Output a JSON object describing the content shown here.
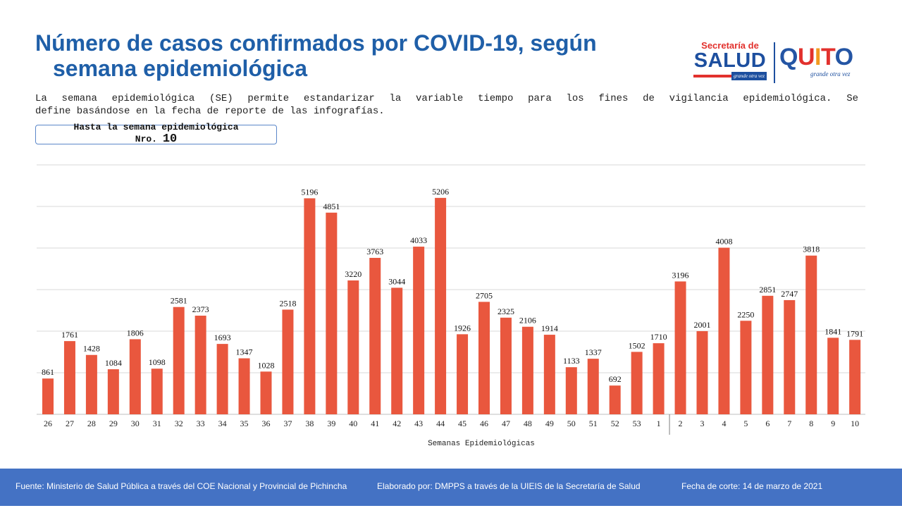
{
  "header": {
    "title_line1": "Número de casos confirmados por COVID-19, según",
    "title_line2": "semana epidemiológica",
    "logo_salud": {
      "top": "Secretaría de",
      "main": "SALUD",
      "tagline": "grande otra vez"
    },
    "logo_quito": {
      "word": "QUITO",
      "tagline": "grande otra vez",
      "letter_colors": [
        "#2455a4",
        "#e2312d",
        "#f29a1f",
        "#e2312d",
        "#2455a4"
      ]
    }
  },
  "description": {
    "line1": "La semana epidemiológica (SE) permite estandarizar la variable tiempo para los fines de vigilancia epidemiológica. Se",
    "line2": "define basándose en la fecha de reporte de las infografías."
  },
  "week_box": {
    "line1": "Hasta la semana epidemiológica",
    "nro_label": "Nro.",
    "nro_value": "10"
  },
  "chart_data": {
    "type": "bar",
    "categories": [
      "26",
      "27",
      "28",
      "29",
      "30",
      "31",
      "32",
      "33",
      "34",
      "35",
      "36",
      "37",
      "38",
      "39",
      "40",
      "41",
      "42",
      "43",
      "44",
      "45",
      "46",
      "47",
      "48",
      "49",
      "50",
      "51",
      "52",
      "53",
      "1",
      "2",
      "3",
      "4",
      "5",
      "6",
      "7",
      "8",
      "9",
      "10"
    ],
    "values": [
      861,
      1761,
      1428,
      1084,
      1806,
      1098,
      2581,
      2373,
      1693,
      1347,
      1028,
      2518,
      5196,
      4851,
      3220,
      3763,
      3044,
      4033,
      5206,
      1926,
      2705,
      2325,
      2106,
      1914,
      1133,
      1337,
      692,
      1502,
      1710,
      3196,
      2001,
      4008,
      2250,
      2851,
      2747,
      3818,
      1841,
      1791
    ],
    "xlabel": "Semanas Epidemiológicas",
    "ylabel": "",
    "ylim": [
      0,
      6000
    ],
    "grid": true,
    "data_labels": true,
    "bar_color": "#e9573e"
  },
  "footer": {
    "source": "Fuente: Ministerio de Salud Pública a través del COE Nacional y Provincial de Pichincha",
    "elaborated": "Elaborado por: DMPPS a través de la UIEIS de la Secretaría de Salud",
    "cutoff": "Fecha de corte: 14 de marzo de 2021"
  },
  "colors": {
    "title": "#1f5fa8",
    "bar": "#e9573e",
    "footer_band": "#4472c4"
  }
}
